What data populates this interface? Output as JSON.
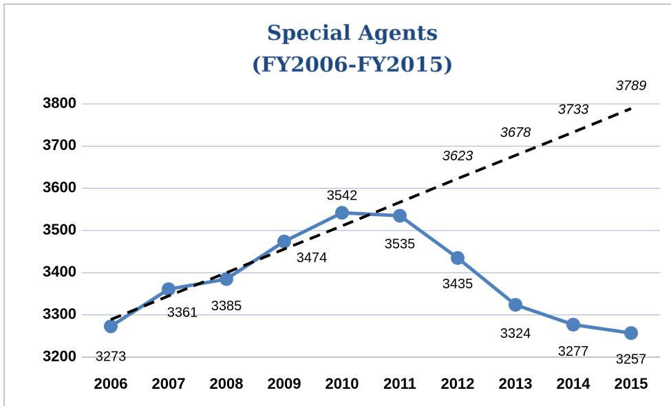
{
  "chart_data": {
    "type": "line",
    "title": "Special Agents",
    "subtitle": "(FY2006-FY2015)",
    "categories": [
      "2006",
      "2007",
      "2008",
      "2009",
      "2010",
      "2011",
      "2012",
      "2013",
      "2014",
      "2015"
    ],
    "series": [
      {
        "name": "Special Agents",
        "color": "#4f81bd",
        "values": [
          3273,
          3361,
          3385,
          3474,
          3542,
          3535,
          3435,
          3324,
          3277,
          3257
        ]
      },
      {
        "name": "Trend",
        "color": "#000000",
        "dashed": true,
        "values": [
          3289,
          3345,
          3400,
          3456,
          3511,
          3567,
          3623,
          3678,
          3733,
          3789
        ],
        "value_labels": [
          null,
          null,
          null,
          null,
          null,
          null,
          "3623",
          "3678",
          "3733",
          "3789"
        ]
      }
    ],
    "ylim": [
      3200,
      3800
    ],
    "yticks": [
      3200,
      3300,
      3400,
      3500,
      3600,
      3700,
      3800
    ],
    "grid": true
  }
}
